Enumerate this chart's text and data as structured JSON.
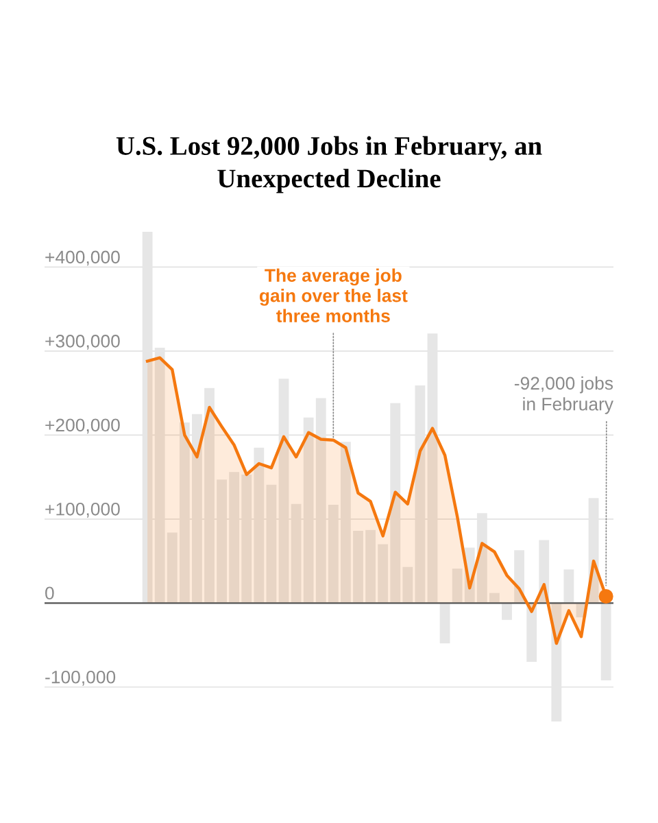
{
  "chart_data": {
    "type": "bar",
    "title": "U.S. Lost 92,000 Jobs in February, an\nUnexpected Decline",
    "categories": [
      null,
      null,
      null,
      null,
      null,
      null,
      null,
      null,
      null,
      null,
      null,
      null,
      null,
      null,
      null,
      null,
      null,
      null,
      null,
      null,
      null,
      null,
      null,
      null,
      null,
      null,
      null,
      null,
      null,
      null,
      null,
      null,
      null,
      null,
      null,
      null,
      null,
      null
    ],
    "series": [
      {
        "color": "#e6e6e6",
        "values": [
          442000,
          304000,
          84000,
          215000,
          225000,
          256000,
          147000,
          156000,
          153000,
          185000,
          141000,
          267000,
          118000,
          221000,
          244000,
          117000,
          192000,
          86000,
          87000,
          70000,
          238000,
          43000,
          259000,
          321000,
          -48000,
          41000,
          66000,
          107000,
          12000,
          -20000,
          63000,
          -70000,
          75000,
          -141000,
          40000,
          -17000,
          125000,
          -92000
        ]
      },
      {
        "type": "area",
        "color": "#f5780f",
        "values": [
          288000,
          292000,
          278000,
          200000,
          174000,
          233000,
          210000,
          188000,
          153000,
          166000,
          161000,
          198000,
          174000,
          203000,
          195000,
          194000,
          185000,
          131000,
          121000,
          80000,
          132000,
          118000,
          181000,
          208000,
          176000,
          103000,
          18000,
          71000,
          61000,
          33000,
          17000,
          -10000,
          22000,
          -48000,
          -9000,
          -40000,
          50000,
          8000
        ]
      },
      {
        "type": "scatter",
        "color": "#f5780f",
        "marker": "circle",
        "values": [
          null,
          null,
          null,
          null,
          null,
          null,
          null,
          null,
          null,
          null,
          null,
          null,
          null,
          null,
          null,
          null,
          null,
          null,
          null,
          null,
          null,
          null,
          null,
          null,
          null,
          null,
          null,
          null,
          null,
          null,
          null,
          null,
          null,
          null,
          null,
          null,
          null,
          8000
        ]
      }
    ],
    "ylim": [
      -141000,
      442000
    ],
    "yticks": [
      {
        "value": -100000,
        "label": "-100,000"
      },
      {
        "value": 0,
        "label": "0"
      },
      {
        "value": 100000,
        "label": "+100,000"
      },
      {
        "value": 200000,
        "label": "+200,000"
      },
      {
        "value": 300000,
        "label": "+300,000"
      },
      {
        "value": 400000,
        "label": "+400,000"
      }
    ],
    "grid": "y",
    "legend": false,
    "annotations": [
      "The average job\ngain over the last\nthree months",
      "-92,000 jobs\nin February"
    ]
  }
}
